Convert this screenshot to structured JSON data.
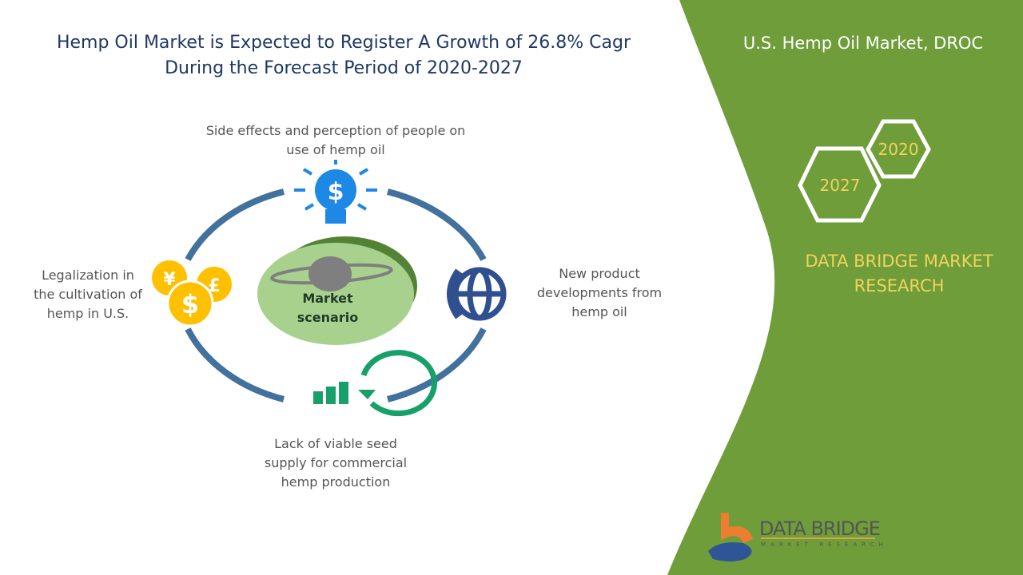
{
  "title": {
    "line1": "Hemp Oil Market is Expected to Register A Growth of 26.8% Cagr",
    "line2": "During the Forecast Period of 2020-2027"
  },
  "center": {
    "line1": "Market",
    "line2": "scenario"
  },
  "items": {
    "top": {
      "line1": "Side effects and perception of people on",
      "line2": "use of hemp oil",
      "icon": "lightbulb-dollar-icon"
    },
    "left": {
      "line1": "Legalization in",
      "line2": "the cultivation of",
      "line3": "hemp in U.S.",
      "icon": "currency-coins-icon"
    },
    "right": {
      "line1": "New product",
      "line2": "developments from",
      "line3": "hemp oil",
      "icon": "phone-globe-icon"
    },
    "bottom": {
      "line1": "Lack of viable seed",
      "line2": "supply for commercial",
      "line3": "hemp production",
      "icon": "growth-chart-icon"
    }
  },
  "panel": {
    "title": "U.S. Hemp Oil Market,  DROC",
    "year_start": "2020",
    "year_end": "2027",
    "brand_line1": "DATA BRIDGE MARKET",
    "brand_line2": "RESEARCH",
    "logo_name": "DATA BRIDGE",
    "logo_sub": "MARKET RESEARCH"
  },
  "colors": {
    "panel": "#6f9d3a",
    "ring": "#41719c",
    "accent": "#f2d35b",
    "title": "#1f3864"
  }
}
